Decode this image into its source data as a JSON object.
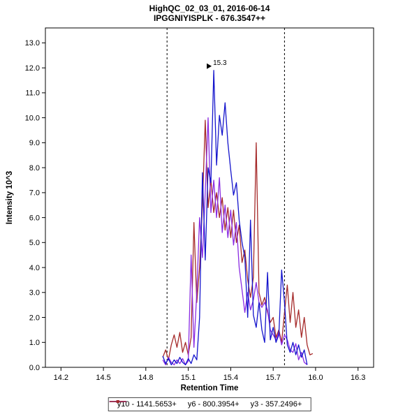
{
  "chart_data": {
    "type": "line",
    "title": "HighQC_02_03_01, 2016-06-14",
    "subtitle": "IPGGNIYISPLK - 676.3547++",
    "xlabel": "Retention Time",
    "ylabel": "Intensity 10^3",
    "xlim": [
      14.09,
      16.41
    ],
    "ylim": [
      0,
      13.6
    ],
    "x_ticks": [
      14.2,
      14.5,
      14.8,
      15.1,
      15.4,
      15.7,
      16.0,
      16.3
    ],
    "y_ticks": [
      0,
      1,
      2,
      3,
      4,
      5,
      6,
      7,
      8,
      9,
      10,
      11,
      12,
      13
    ],
    "grid": false,
    "legend_position": "bottom",
    "integration_boundaries": [
      14.95,
      15.78
    ],
    "peak_annotation": {
      "label": "15.3",
      "x": 15.28,
      "y": 11.9,
      "color": "#1414CC"
    },
    "x_start": 14.92,
    "x_step": 0.02,
    "series": [
      {
        "id": "y10",
        "name": "y10 - 1141.5653+",
        "color": "#1414CC",
        "y": [
          0.45,
          0.15,
          0.35,
          0.1,
          0.3,
          0.15,
          0.4,
          0.2,
          0.1,
          0.35,
          0.15,
          0.5,
          0.3,
          2.0,
          7.8,
          4.3,
          8.0,
          7.4,
          11.9,
          8.1,
          10.1,
          9.3,
          10.6,
          9.0,
          7.9,
          6.9,
          7.4,
          5.9,
          5.0,
          4.4,
          2.0,
          5.9,
          2.1,
          1.6,
          2.6,
          1.5,
          1.0,
          3.8,
          1.1,
          1.6,
          1.0,
          1.3,
          3.9,
          2.6,
          0.9,
          0.6,
          1.0,
          0.5,
          0.9,
          0.4,
          0.7,
          0.1
        ]
      },
      {
        "id": "y6",
        "name": "y6 - 800.3954+",
        "color": "#8A2BE2",
        "y": [
          0.3,
          0.1,
          0.4,
          0.2,
          0.1,
          0.3,
          0.15,
          0.35,
          0.1,
          0.25,
          4.5,
          0.8,
          3.0,
          6.0,
          4.4,
          7.0,
          10.0,
          6.2,
          7.5,
          6.0,
          7.6,
          5.4,
          6.5,
          5.2,
          6.3,
          4.9,
          5.8,
          4.0,
          3.1,
          2.2,
          3.0,
          2.3,
          2.7,
          3.4,
          2.6,
          2.4,
          2.6,
          2.3,
          1.5,
          1.3,
          1.1,
          1.4,
          0.9,
          1.3,
          1.1,
          0.7,
          0.6,
          0.95,
          0.3,
          0.6,
          0.2,
          0.1
        ]
      },
      {
        "id": "y3",
        "name": "y3 - 357.2496+",
        "color": "#A52A2A",
        "y": [
          0.4,
          0.7,
          0.3,
          0.9,
          1.3,
          0.8,
          1.4,
          0.6,
          1.0,
          0.5,
          1.2,
          5.8,
          2.6,
          4.0,
          6.5,
          9.9,
          6.4,
          7.5,
          6.2,
          7.0,
          6.0,
          6.8,
          5.5,
          6.4,
          5.2,
          6.3,
          5.0,
          5.7,
          4.2,
          4.7,
          3.5,
          2.8,
          3.6,
          9.0,
          3.0,
          2.5,
          2.8,
          2.2,
          1.8,
          2.0,
          1.2,
          1.5,
          1.0,
          2.2,
          3.3,
          1.8,
          3.0,
          1.6,
          2.3,
          1.2,
          2.0,
          0.9,
          0.5,
          0.55
        ]
      }
    ]
  }
}
